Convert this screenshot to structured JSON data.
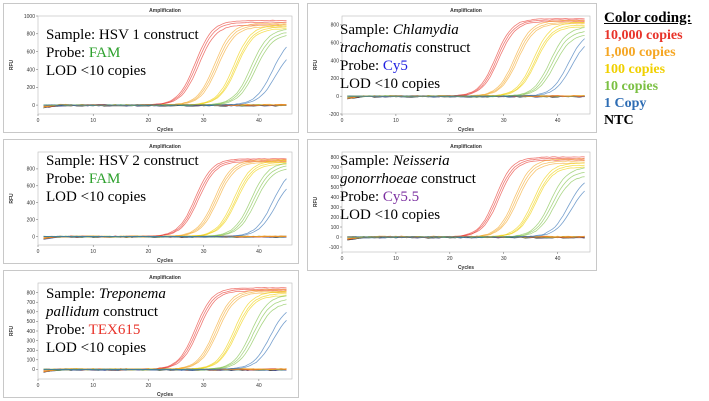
{
  "colors": {
    "c10000": "#e8332a",
    "c1000": "#f5a623",
    "c100": "#f0d000",
    "c10": "#7bc043",
    "c1": "#2e6db4",
    "ntc": "#000000",
    "probe_fam": "#2ca02c",
    "probe_cy5": "#1f1fe0",
    "probe_cy55": "#7b2fa0",
    "probe_tex615": "#e8332a"
  },
  "legend": {
    "heading": "Color coding:",
    "items": [
      {
        "label": "10,000 copies",
        "color": "#e8332a"
      },
      {
        "label": "1,000 copies",
        "color": "#f5a623"
      },
      {
        "label": "100 copies",
        "color": "#f0d000"
      },
      {
        "label": "10 copies",
        "color": "#7bc043"
      },
      {
        "label": "1 Copy",
        "color": "#2e6db4"
      },
      {
        "label": "NTC",
        "color": "#000000"
      }
    ]
  },
  "panels": [
    {
      "sample_prefix": "Sample: ",
      "sample_name": "HSV 1",
      "sample_italic": false,
      "sample_line2_italic": "",
      "sample_suffix": " construct",
      "probe_prefix": "Probe: ",
      "probe": "FAM",
      "probe_color": "#2ca02c",
      "lod": "LOD <10 copies"
    },
    {
      "sample_prefix": "Sample: ",
      "sample_name": "Chlamydia",
      "sample_italic": true,
      "sample_line2_italic": "trachomatis",
      "sample_suffix": " construct",
      "probe_prefix": "Probe: ",
      "probe": "Cy5",
      "probe_color": "#1f1fe0",
      "lod": "LOD <10 copies"
    },
    {
      "sample_prefix": "Sample: ",
      "sample_name": "HSV 2",
      "sample_italic": false,
      "sample_line2_italic": "",
      "sample_suffix": " construct",
      "probe_prefix": "Probe: ",
      "probe": "FAM",
      "probe_color": "#2ca02c",
      "lod": "LOD <10 copies"
    },
    {
      "sample_prefix": "Sample: ",
      "sample_name": "Neisseria",
      "sample_italic": true,
      "sample_line2_italic": "gonorrhoeae",
      "sample_suffix": " construct",
      "probe_prefix": "Probe: ",
      "probe": "Cy5.5",
      "probe_color": "#7b2fa0",
      "lod": "LOD <10 copies"
    },
    {
      "sample_prefix": "Sample: ",
      "sample_name": "Treponema",
      "sample_italic": true,
      "sample_line2_italic": "pallidum",
      "sample_suffix": " construct",
      "probe_prefix": "Probe: ",
      "probe": "TEX615",
      "probe_color": "#e8332a",
      "lod": "LOD <10 copies"
    }
  ],
  "chart_data": [
    {
      "type": "line",
      "title": "Amplification",
      "xlabel": "Cycles",
      "ylabel": "RFU",
      "xlim": [
        0,
        46
      ],
      "ylim": [
        -100,
        1000
      ],
      "xticks": [
        0,
        10,
        20,
        30,
        40
      ],
      "yticks": [
        0,
        200,
        400,
        600,
        800,
        1000
      ],
      "grid": false,
      "series": [
        {
          "group": "10,000 copies",
          "ct": [
            28.5,
            28.8,
            29.1
          ],
          "plateau": [
            950,
            930,
            900
          ],
          "color": "#e8332a"
        },
        {
          "group": "1,000 copies",
          "ct": [
            32.0,
            32.3,
            32.6
          ],
          "plateau": [
            920,
            900,
            880
          ],
          "color": "#f5a623"
        },
        {
          "group": "100 copies",
          "ct": [
            35.5,
            35.8,
            36.0
          ],
          "plateau": [
            900,
            880,
            860
          ],
          "color": "#f0d000"
        },
        {
          "group": "10 copies",
          "ct": [
            38.6,
            39.0,
            39.4
          ],
          "plateau": [
            860,
            830,
            800
          ],
          "color": "#7bc043"
        },
        {
          "group": "1 Copy",
          "ct": [
            42.5,
            43.0
          ],
          "plateau": [
            780,
            650
          ],
          "color": "#2e6db4"
        },
        {
          "group": "NTC",
          "ct": [],
          "plateau": [],
          "color": "#000000"
        }
      ]
    },
    {
      "type": "line",
      "title": "Amplification",
      "xlabel": "Cycles",
      "ylabel": "RFU",
      "xlim": [
        0,
        46
      ],
      "ylim": [
        -200,
        900
      ],
      "xticks": [
        0,
        10,
        20,
        30,
        40
      ],
      "yticks": [
        -200,
        0,
        200,
        400,
        600,
        800
      ],
      "grid": false,
      "series": [
        {
          "group": "10,000 copies",
          "ct": [
            28.5,
            28.8,
            29.1
          ],
          "plateau": [
            870,
            855,
            840
          ],
          "color": "#e8332a"
        },
        {
          "group": "1,000 copies",
          "ct": [
            32.0,
            32.3,
            32.6
          ],
          "plateau": [
            850,
            830,
            815
          ],
          "color": "#f5a623"
        },
        {
          "group": "100 copies",
          "ct": [
            35.5,
            35.8,
            36.0
          ],
          "plateau": [
            830,
            800,
            780
          ],
          "color": "#f0d000"
        },
        {
          "group": "10 copies",
          "ct": [
            38.6,
            39.0,
            39.4
          ],
          "plateau": [
            780,
            740,
            700
          ],
          "color": "#7bc043"
        },
        {
          "group": "1 Copy",
          "ct": [
            42.0,
            42.6
          ],
          "plateau": [
            740,
            680
          ],
          "color": "#2e6db4"
        },
        {
          "group": "NTC",
          "ct": [],
          "plateau": [],
          "color": "#000000"
        }
      ]
    },
    {
      "type": "line",
      "title": "Amplification",
      "xlabel": "Cycles",
      "ylabel": "RFU",
      "xlim": [
        0,
        46
      ],
      "ylim": [
        -100,
        1000
      ],
      "xticks": [
        0,
        10,
        20,
        30,
        40
      ],
      "yticks": [
        0,
        200,
        400,
        600,
        800
      ],
      "grid": false,
      "series": [
        {
          "group": "10,000 copies",
          "ct": [
            28.5,
            28.8,
            29.1
          ],
          "plateau": [
            920,
            905,
            890
          ],
          "color": "#e8332a"
        },
        {
          "group": "1,000 copies",
          "ct": [
            32.0,
            32.3,
            32.6
          ],
          "plateau": [
            910,
            895,
            880
          ],
          "color": "#f5a623"
        },
        {
          "group": "100 copies",
          "ct": [
            35.5,
            35.8,
            36.0
          ],
          "plateau": [
            900,
            880,
            860
          ],
          "color": "#f0d000"
        },
        {
          "group": "10 copies",
          "ct": [
            38.6,
            39.0,
            39.4
          ],
          "plateau": [
            880,
            850,
            820
          ],
          "color": "#7bc043"
        },
        {
          "group": "1 Copy",
          "ct": [
            42.5,
            43.0
          ],
          "plateau": [
            820,
            720
          ],
          "color": "#2e6db4"
        },
        {
          "group": "NTC",
          "ct": [],
          "plateau": [],
          "color": "#000000"
        }
      ]
    },
    {
      "type": "line",
      "title": "Amplification",
      "xlabel": "Cycles",
      "ylabel": "RFU",
      "xlim": [
        0,
        46
      ],
      "ylim": [
        -150,
        850
      ],
      "xticks": [
        0,
        10,
        20,
        30,
        40
      ],
      "yticks": [
        -100,
        0,
        100,
        200,
        300,
        400,
        500,
        600,
        700,
        800
      ],
      "grid": false,
      "series": [
        {
          "group": "10,000 copies",
          "ct": [
            28.5,
            28.8,
            29.1
          ],
          "plateau": [
            800,
            785,
            770
          ],
          "color": "#e8332a"
        },
        {
          "group": "1,000 copies",
          "ct": [
            32.0,
            32.3,
            32.6
          ],
          "plateau": [
            780,
            760,
            740
          ],
          "color": "#f5a623"
        },
        {
          "group": "100 copies",
          "ct": [
            35.5,
            35.8,
            36.0
          ],
          "plateau": [
            740,
            720,
            700
          ],
          "color": "#f0d000"
        },
        {
          "group": "10 copies",
          "ct": [
            38.6,
            39.0,
            39.4
          ],
          "plateau": [
            700,
            660,
            620
          ],
          "color": "#7bc043"
        },
        {
          "group": "1 Copy",
          "ct": [
            42.0,
            42.6
          ],
          "plateau": [
            620,
            560
          ],
          "color": "#2e6db4"
        },
        {
          "group": "NTC",
          "ct": [],
          "plateau": [],
          "color": "#000000"
        }
      ]
    },
    {
      "type": "line",
      "title": "Amplification",
      "xlabel": "Cycles",
      "ylabel": "RFU",
      "xlim": [
        0,
        46
      ],
      "ylim": [
        -100,
        900
      ],
      "xticks": [
        0,
        10,
        20,
        30,
        40
      ],
      "yticks": [
        0,
        100,
        200,
        300,
        400,
        500,
        600,
        700,
        800
      ],
      "grid": false,
      "series": [
        {
          "group": "10,000 copies",
          "ct": [
            28.5,
            28.8,
            29.1
          ],
          "plateau": [
            850,
            835,
            820
          ],
          "color": "#e8332a"
        },
        {
          "group": "1,000 copies",
          "ct": [
            32.0,
            32.3,
            32.6
          ],
          "plateau": [
            830,
            815,
            800
          ],
          "color": "#f5a623"
        },
        {
          "group": "100 copies",
          "ct": [
            35.5,
            35.8,
            36.0
          ],
          "plateau": [
            810,
            790,
            770
          ],
          "color": "#f0d000"
        },
        {
          "group": "10 copies",
          "ct": [
            38.6,
            39.0,
            39.4
          ],
          "plateau": [
            780,
            740,
            700
          ],
          "color": "#7bc043"
        },
        {
          "group": "1 Copy",
          "ct": [
            42.0,
            42.6
          ],
          "plateau": [
            680,
            620
          ],
          "color": "#2e6db4"
        },
        {
          "group": "NTC",
          "ct": [],
          "plateau": [],
          "color": "#000000"
        }
      ]
    }
  ]
}
